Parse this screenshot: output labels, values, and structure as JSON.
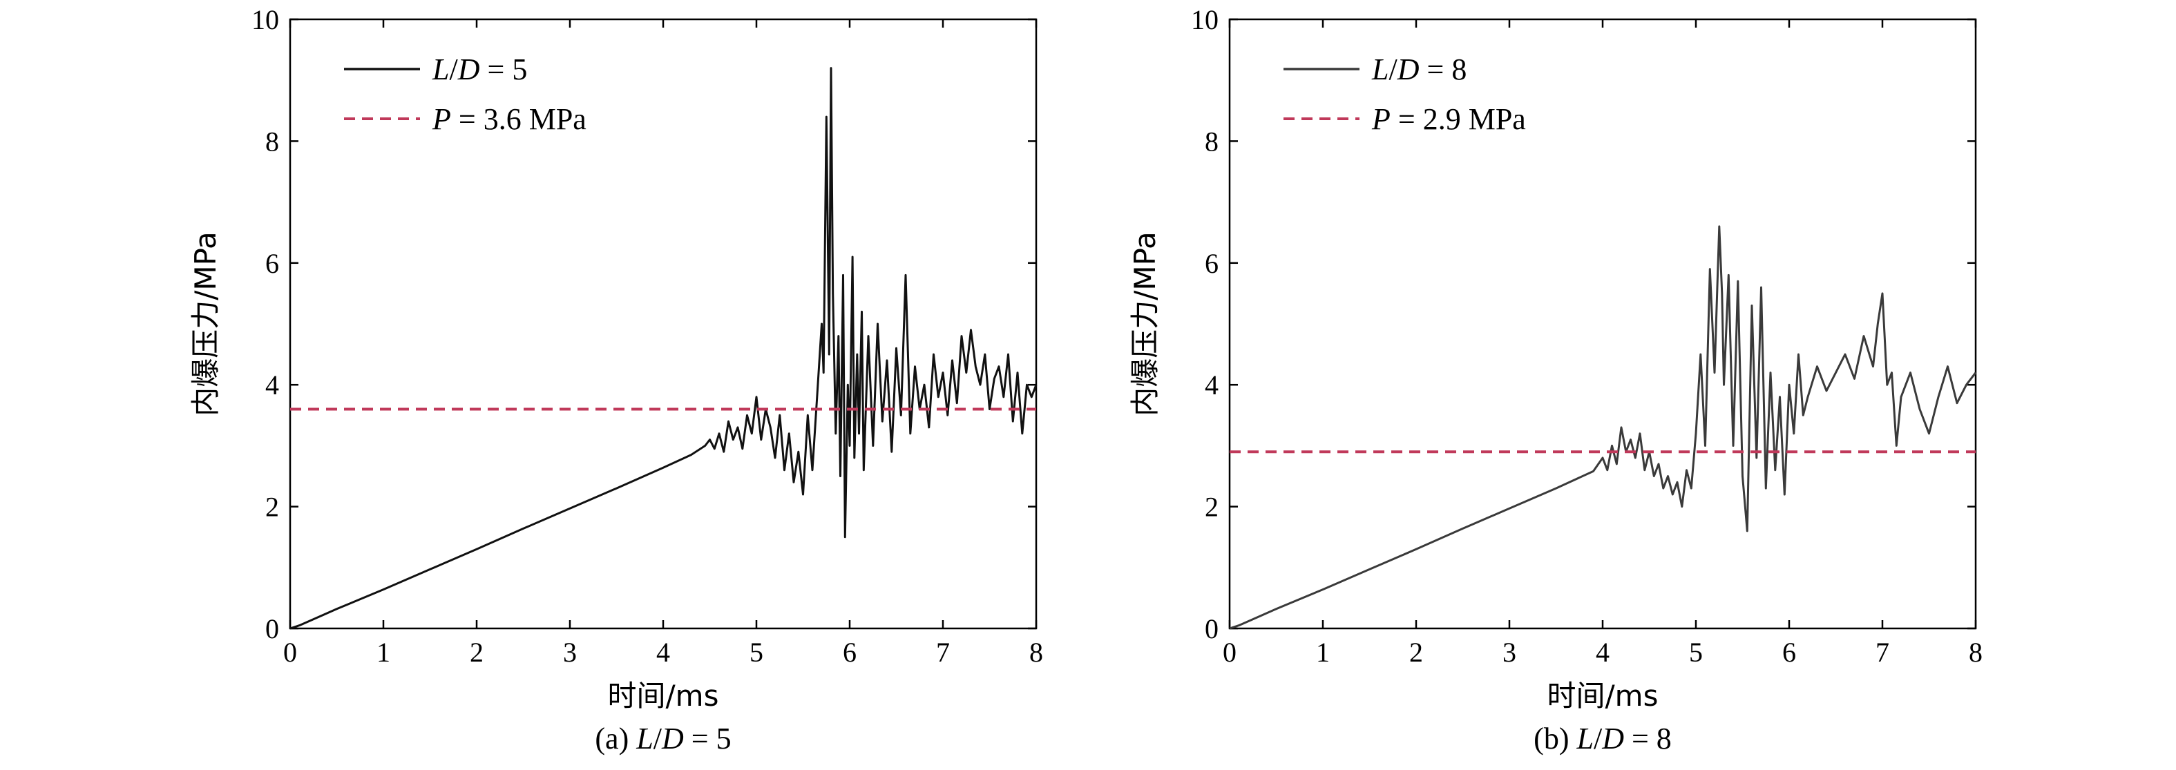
{
  "chart_data": [
    {
      "type": "line",
      "panel_caption": [
        "(a) ",
        "L",
        "/",
        "D",
        " = 5"
      ],
      "xlabel": "时间/ms",
      "ylabel": "内爆压力/MPa",
      "xlim": [
        0,
        8
      ],
      "ylim": [
        0,
        10
      ],
      "xticks": [
        0,
        1,
        2,
        3,
        4,
        5,
        6,
        7,
        8
      ],
      "yticks": [
        0,
        2,
        4,
        6,
        8,
        10
      ],
      "legend_position": "top-left",
      "series": [
        {
          "name_parts": [
            "L",
            "/",
            "D",
            " = 5"
          ],
          "style": "solid",
          "color": "#111111",
          "x": [
            0,
            0.1,
            0.5,
            1,
            1.5,
            2,
            2.5,
            3,
            3.5,
            4,
            4.3,
            4.45,
            4.5,
            4.55,
            4.6,
            4.65,
            4.7,
            4.75,
            4.8,
            4.85,
            4.9,
            4.95,
            5.0,
            5.05,
            5.1,
            5.15,
            5.2,
            5.25,
            5.3,
            5.35,
            5.4,
            5.45,
            5.5,
            5.55,
            5.6,
            5.65,
            5.7,
            5.72,
            5.75,
            5.78,
            5.8,
            5.82,
            5.85,
            5.88,
            5.9,
            5.93,
            5.95,
            5.98,
            6.0,
            6.03,
            6.05,
            6.08,
            6.1,
            6.13,
            6.15,
            6.2,
            6.25,
            6.3,
            6.35,
            6.4,
            6.45,
            6.5,
            6.55,
            6.6,
            6.65,
            6.7,
            6.75,
            6.8,
            6.85,
            6.9,
            6.95,
            7.0,
            7.05,
            7.1,
            7.15,
            7.2,
            7.25,
            7.3,
            7.35,
            7.4,
            7.45,
            7.5,
            7.55,
            7.6,
            7.65,
            7.7,
            7.75,
            7.8,
            7.85,
            7.9,
            7.95,
            8.0
          ],
          "y": [
            0,
            0.05,
            0.32,
            0.64,
            0.97,
            1.3,
            1.64,
            1.97,
            2.3,
            2.64,
            2.85,
            3.0,
            3.1,
            2.95,
            3.2,
            2.9,
            3.4,
            3.1,
            3.3,
            2.95,
            3.5,
            3.2,
            3.8,
            3.1,
            3.6,
            3.3,
            2.8,
            3.5,
            2.6,
            3.2,
            2.4,
            2.9,
            2.2,
            3.5,
            2.6,
            3.8,
            5.0,
            4.2,
            8.4,
            4.5,
            9.2,
            5.5,
            3.2,
            4.8,
            2.5,
            5.8,
            1.5,
            4.0,
            3.0,
            6.1,
            2.8,
            4.5,
            3.2,
            5.2,
            2.6,
            4.8,
            3.0,
            5.0,
            3.4,
            4.4,
            2.9,
            4.6,
            3.5,
            5.8,
            3.2,
            4.3,
            3.6,
            4.0,
            3.3,
            4.5,
            3.8,
            4.2,
            3.5,
            4.4,
            3.7,
            4.8,
            4.2,
            4.9,
            4.3,
            4.0,
            4.5,
            3.6,
            4.1,
            4.3,
            3.8,
            4.5,
            3.4,
            4.2,
            3.2,
            4.0,
            3.8,
            4.0
          ]
        },
        {
          "name_parts": [
            "P",
            " = 3.6 MPa"
          ],
          "style": "dashed",
          "color": "#c0395a",
          "x": [
            0,
            8
          ],
          "y": [
            3.6,
            3.6
          ]
        }
      ]
    },
    {
      "type": "line",
      "panel_caption": [
        "(b) ",
        "L",
        "/",
        "D",
        " = 8"
      ],
      "xlabel": "时间/ms",
      "ylabel": "内爆压力/MPa",
      "xlim": [
        0,
        8
      ],
      "ylim": [
        0,
        10
      ],
      "xticks": [
        0,
        1,
        2,
        3,
        4,
        5,
        6,
        7,
        8
      ],
      "yticks": [
        0,
        2,
        4,
        6,
        8,
        10
      ],
      "legend_position": "top-left",
      "series": [
        {
          "name_parts": [
            "L",
            "/",
            "D",
            " = 8"
          ],
          "style": "solid",
          "color": "#3a3a3a",
          "x": [
            0,
            0.1,
            0.5,
            1,
            1.5,
            2,
            2.5,
            3,
            3.5,
            3.9,
            4.0,
            4.05,
            4.1,
            4.15,
            4.2,
            4.25,
            4.3,
            4.35,
            4.4,
            4.45,
            4.5,
            4.55,
            4.6,
            4.65,
            4.7,
            4.75,
            4.8,
            4.85,
            4.9,
            4.95,
            5.0,
            5.05,
            5.1,
            5.15,
            5.2,
            5.25,
            5.28,
            5.3,
            5.35,
            5.4,
            5.45,
            5.5,
            5.55,
            5.6,
            5.65,
            5.7,
            5.75,
            5.8,
            5.85,
            5.9,
            5.95,
            6.0,
            6.05,
            6.1,
            6.15,
            6.2,
            6.3,
            6.4,
            6.5,
            6.6,
            6.7,
            6.8,
            6.9,
            6.95,
            7.0,
            7.05,
            7.1,
            7.15,
            7.2,
            7.3,
            7.4,
            7.5,
            7.6,
            7.7,
            7.8,
            7.9,
            8.0
          ],
          "y": [
            0,
            0.05,
            0.32,
            0.64,
            0.97,
            1.3,
            1.64,
            1.97,
            2.3,
            2.58,
            2.8,
            2.6,
            3.0,
            2.7,
            3.3,
            2.9,
            3.1,
            2.8,
            3.2,
            2.6,
            2.9,
            2.5,
            2.7,
            2.3,
            2.5,
            2.2,
            2.4,
            2.0,
            2.6,
            2.3,
            3.2,
            4.5,
            3.0,
            5.9,
            4.2,
            6.6,
            5.5,
            4.0,
            5.8,
            3.0,
            5.7,
            2.5,
            1.6,
            5.3,
            2.8,
            5.6,
            2.3,
            4.2,
            2.6,
            3.8,
            2.2,
            4.0,
            3.2,
            4.5,
            3.5,
            3.8,
            4.3,
            3.9,
            4.2,
            4.5,
            4.1,
            4.8,
            4.3,
            5.0,
            5.5,
            4.0,
            4.2,
            3.0,
            3.8,
            4.2,
            3.6,
            3.2,
            3.8,
            4.3,
            3.7,
            4.0,
            4.2
          ]
        },
        {
          "name_parts": [
            "P",
            " = 2.9 MPa"
          ],
          "style": "dashed",
          "color": "#c0395a",
          "x": [
            0,
            8
          ],
          "y": [
            2.9,
            2.9
          ]
        }
      ]
    }
  ]
}
